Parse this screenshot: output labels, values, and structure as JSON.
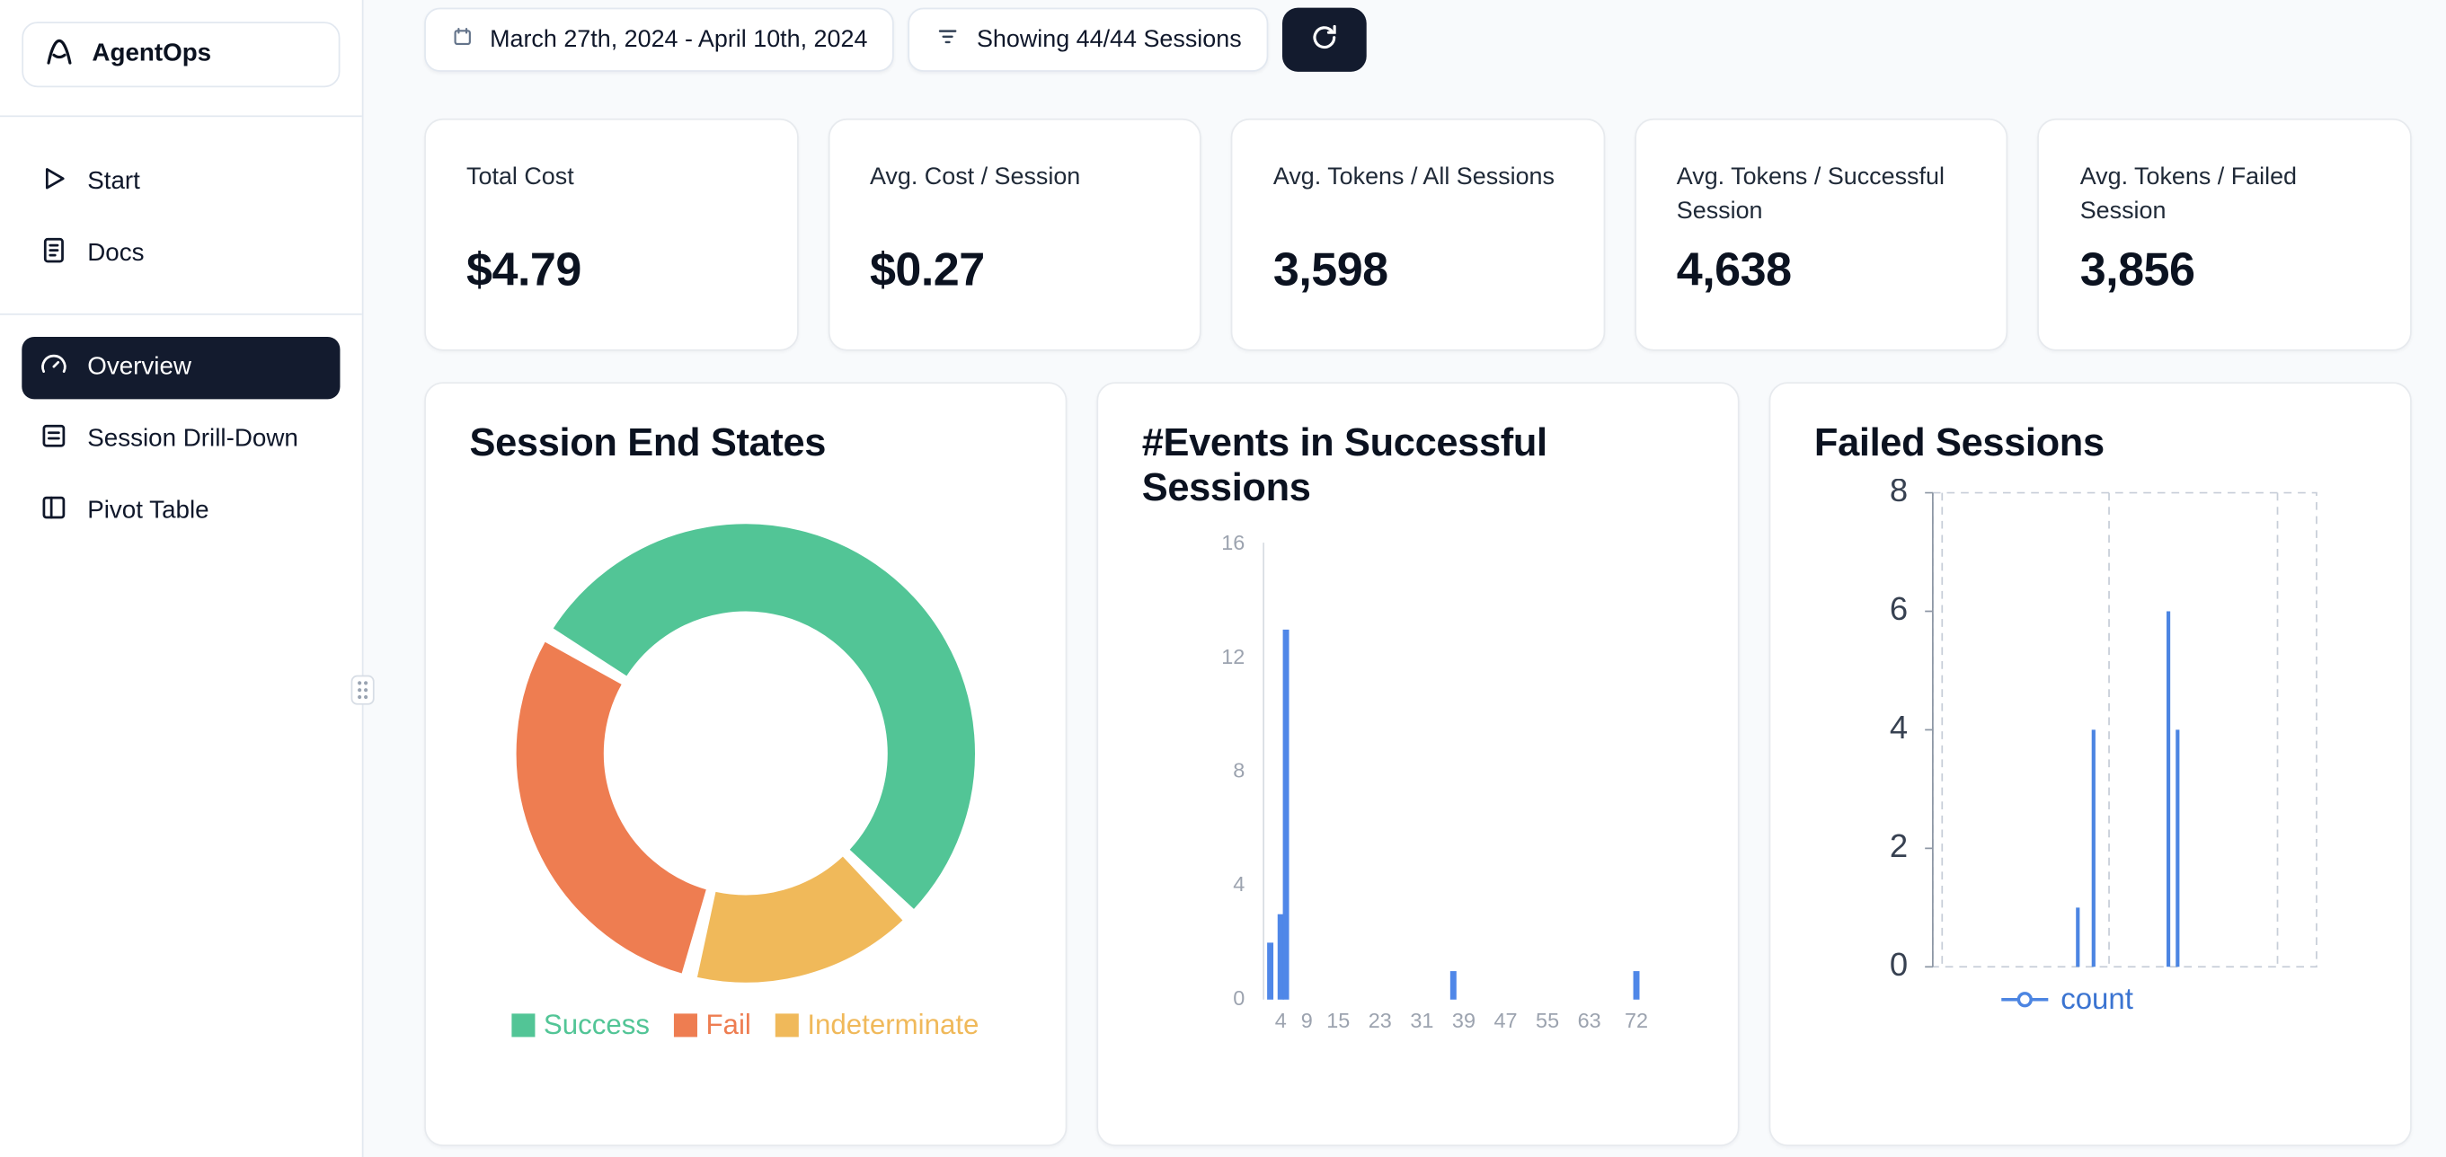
{
  "app": {
    "name": "AgentOps",
    "logo_icon": "agentops-logo-icon"
  },
  "sidebar": {
    "items": [
      {
        "label": "Start",
        "icon": "play-icon",
        "active": false
      },
      {
        "label": "Docs",
        "icon": "docs-icon",
        "active": false
      },
      {
        "label": "Overview",
        "icon": "gauge-icon",
        "active": true
      },
      {
        "label": "Session Drill-Down",
        "icon": "rows-icon",
        "active": false
      },
      {
        "label": "Pivot Table",
        "icon": "pivot-icon",
        "active": false
      }
    ]
  },
  "toolbar": {
    "date_range": "March 27th, 2024 - April 10th, 2024",
    "date_icon": "calendar-icon",
    "filter_label": "Showing 44/44 Sessions",
    "filter_icon": "filter-icon",
    "refresh_icon": "refresh-icon",
    "accent_dark": "#131b2e"
  },
  "stats": [
    {
      "label": "Total Cost",
      "value": "$4.79"
    },
    {
      "label": "Avg. Cost / Session",
      "value": "$0.27"
    },
    {
      "label": "Avg. Tokens / All Sessions",
      "value": "3,598"
    },
    {
      "label": "Avg. Tokens / Successful Session",
      "value": "4,638"
    },
    {
      "label": "Avg. Tokens / Failed Session",
      "value": "3,856"
    }
  ],
  "chart_data": [
    {
      "type": "pie",
      "donut": true,
      "title": "Session End States",
      "labels": [
        "Success",
        "Fail",
        "Indeterminate"
      ],
      "values": [
        24,
        13,
        7
      ],
      "colors": [
        "#52c596",
        "#ee7d51",
        "#f0b95a"
      ],
      "draw_order": [
        0,
        2,
        1
      ],
      "start_angle": -57,
      "legend_position": "bottom"
    },
    {
      "type": "bar",
      "title": "#Events in Successful Sessions",
      "xlabel": "",
      "ylabel": "",
      "x_ticks": [
        4,
        9,
        15,
        23,
        31,
        39,
        47,
        55,
        63,
        72
      ],
      "y_ticks": [
        0,
        4,
        8,
        12,
        16
      ],
      "ylim": [
        0,
        16
      ],
      "bar_color": "#4f87e8",
      "points": [
        {
          "x": 2,
          "count": 2
        },
        {
          "x": 4,
          "count": 3
        },
        {
          "x": 5,
          "count": 13
        },
        {
          "x": 37,
          "count": 1
        },
        {
          "x": 72,
          "count": 1
        }
      ]
    },
    {
      "type": "line",
      "title": "Failed Sessions",
      "y_ticks": [
        0,
        2,
        4,
        6,
        8
      ],
      "ylim": [
        0,
        8
      ],
      "grid": "dashed",
      "legend_position": "bottom",
      "series": [
        {
          "name": "count",
          "color": "#4c85e2",
          "points": [
            {
              "x": 0.378,
              "y": 1
            },
            {
              "x": 0.419,
              "y": 4
            },
            {
              "x": 0.614,
              "y": 6
            },
            {
              "x": 0.638,
              "y": 4
            }
          ]
        }
      ]
    }
  ]
}
